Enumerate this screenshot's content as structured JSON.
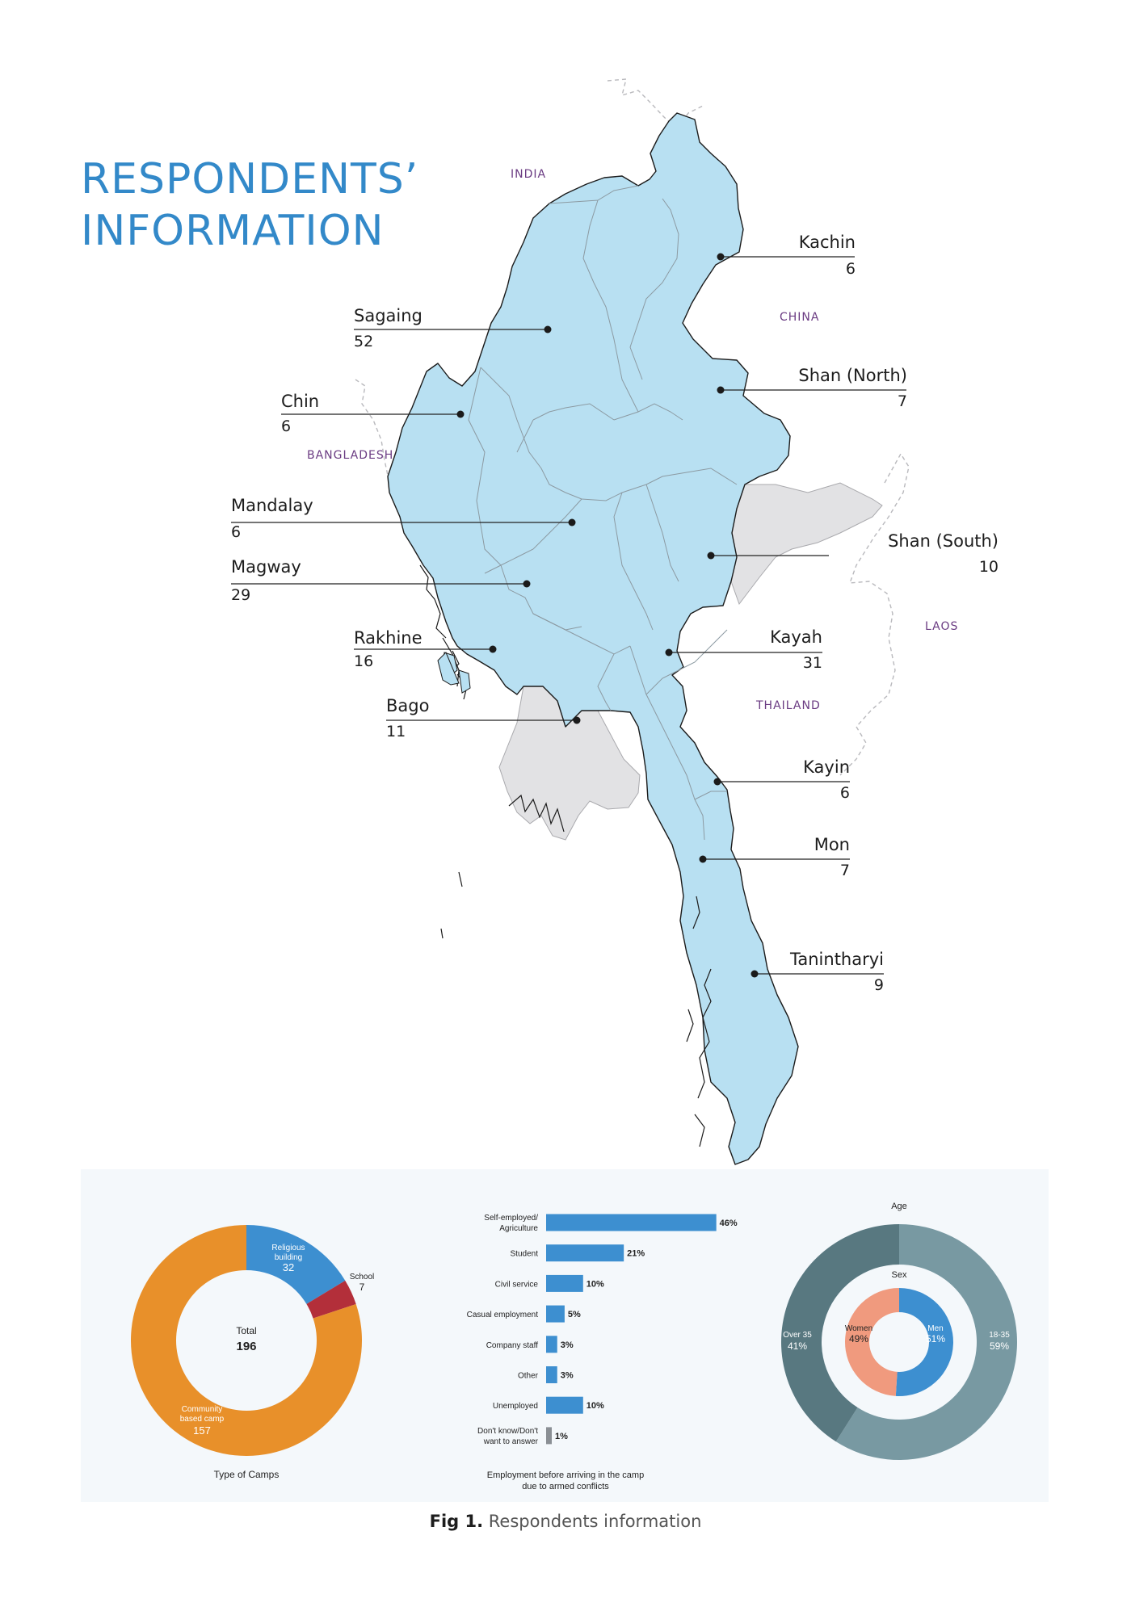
{
  "title": {
    "line1": "RESPONDENTS’",
    "line2": "INFORMATION"
  },
  "map": {
    "countries": [
      {
        "key": "india",
        "label": "INDIA"
      },
      {
        "key": "china",
        "label": "CHINA"
      },
      {
        "key": "bangladesh",
        "label": "BANGLADESH"
      },
      {
        "key": "laos",
        "label": "LAOS"
      },
      {
        "key": "thailand",
        "label": "THAILAND"
      }
    ],
    "regions": [
      {
        "name": "Kachin",
        "value": "6"
      },
      {
        "name": "Sagaing",
        "value": "52"
      },
      {
        "name": "Shan (North)",
        "value": "7"
      },
      {
        "name": "Chin",
        "value": "6"
      },
      {
        "name": "Mandalay",
        "value": "6"
      },
      {
        "name": "Shan (South)",
        "value": "10"
      },
      {
        "name": "Magway",
        "value": "29"
      },
      {
        "name": "Rakhine",
        "value": "16"
      },
      {
        "name": "Kayah",
        "value": "31"
      },
      {
        "name": "Bago",
        "value": "11"
      },
      {
        "name": "Kayin",
        "value": "6"
      },
      {
        "name": "Mon",
        "value": "7"
      },
      {
        "name": "Tanintharyi",
        "value": "9"
      }
    ],
    "colors": {
      "surveyed": "#b8e0f2",
      "not_surveyed": "#e2e2e4",
      "title": "#3389c9"
    }
  },
  "chart_data": [
    {
      "type": "pie",
      "title": "Type of Camps",
      "center_label": "Total",
      "center_value": "196",
      "slices": [
        {
          "label": "Religious building",
          "value": 32,
          "color": "#3d8fd0"
        },
        {
          "label": "School",
          "value": 7,
          "color": "#b32f3a"
        },
        {
          "label": "Community based camp",
          "value": 157,
          "color": "#e8902a"
        }
      ]
    },
    {
      "type": "bar",
      "title": "Employment before arriving in the camp due to armed conflicts",
      "categories": [
        "Self-employed/ Agriculture",
        "Student",
        "Civil service",
        "Casual employment",
        "Company staff",
        "Other",
        "Unemployed",
        "Don't know/Don't want to answer"
      ],
      "values": [
        46,
        21,
        10,
        5,
        3,
        3,
        10,
        1
      ],
      "value_labels": [
        "46%",
        "21%",
        "10%",
        "5%",
        "3%",
        "3%",
        "10%",
        "1%"
      ],
      "colors": [
        "#3d8fd0",
        "#3d8fd0",
        "#3d8fd0",
        "#3d8fd0",
        "#3d8fd0",
        "#3d8fd0",
        "#3d8fd0",
        "#8a8f94"
      ]
    },
    {
      "type": "pie",
      "title": "Age",
      "slices": [
        {
          "label": "18-35",
          "value": 59,
          "pct": "59%",
          "color": "#7899a2"
        },
        {
          "label": "Over 35",
          "value": 41,
          "pct": "41%",
          "color": "#587880"
        }
      ]
    },
    {
      "type": "pie",
      "title": "Sex",
      "slices": [
        {
          "label": "Men",
          "value": 51,
          "pct": "51%",
          "color": "#3d8fd0"
        },
        {
          "label": "Women",
          "value": 49,
          "pct": "49%",
          "color": "#f09a7e"
        }
      ]
    }
  ],
  "caption": {
    "bold": "Fig 1.",
    "rest": " Respondents information"
  }
}
